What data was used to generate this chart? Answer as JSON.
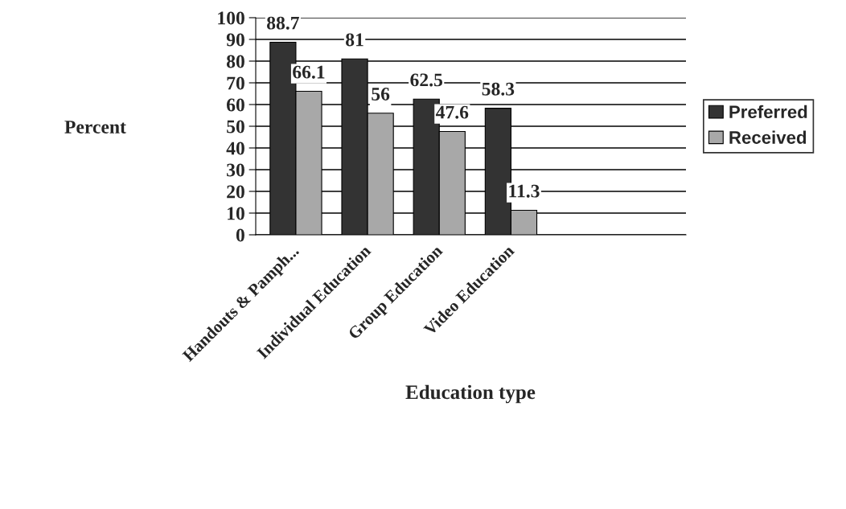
{
  "chart_data": {
    "type": "bar",
    "xlabel": "Education type",
    "ylabel": "Percent",
    "categories": [
      "Handouts & Pamph...",
      "Individual Education",
      "Group Education",
      "Video Education",
      null,
      null
    ],
    "series": [
      {
        "name": "Preferred",
        "color": "#333333",
        "values": [
          88.7,
          81,
          62.5,
          58.3,
          null,
          null
        ]
      },
      {
        "name": "Received",
        "color": "#a8a8a8",
        "values": [
          66.1,
          56,
          47.6,
          11.3,
          null,
          null
        ]
      }
    ],
    "ylim": [
      0,
      100
    ],
    "yticks": [
      0,
      10,
      20,
      30,
      40,
      50,
      60,
      70,
      80,
      90,
      100
    ],
    "grid": "y",
    "legend": "right",
    "data_labels": true
  }
}
